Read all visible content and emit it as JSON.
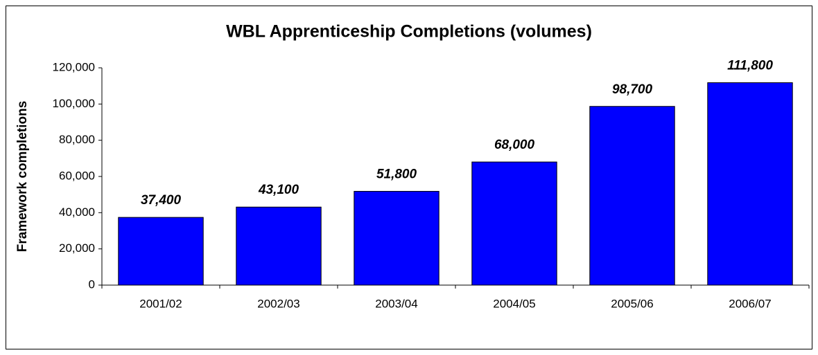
{
  "chart_data": {
    "type": "bar",
    "title": "WBL Apprenticeship Completions (volumes)",
    "y_label": "Framework completions",
    "categories": [
      "2001/02",
      "2002/03",
      "2003/04",
      "2004/05",
      "2005/06",
      "2006/07"
    ],
    "values": [
      37400,
      43100,
      51800,
      68000,
      98700,
      111800
    ],
    "value_labels": [
      "37,400",
      "43,100",
      "51,800",
      "68,000",
      "98,700",
      "111,800"
    ],
    "color": "#0000ff",
    "ylim": [
      0,
      120000
    ],
    "yticks": [
      0,
      {
        "value": 20000,
        "label": "20,000"
      },
      {
        "value": 40000,
        "label": "40,000"
      },
      {
        "value": 60000,
        "label": "60,000"
      },
      {
        "value": 80000,
        "label": "80,000"
      },
      {
        "value": 100000,
        "label": "100,000"
      },
      {
        "value": 120000,
        "label": "120,000"
      }
    ],
    "grid": false
  }
}
